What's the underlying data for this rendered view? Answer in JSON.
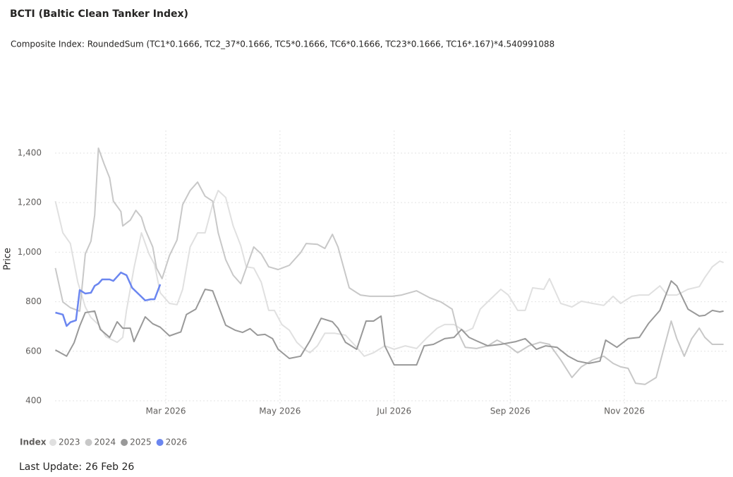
{
  "chart_data": {
    "type": "line",
    "title": "BCTI (Baltic Clean Tanker Index)",
    "subtitle": "Composite Index: RoundedSum (TC1*0.1666, TC2_37*0.1666, TC5*0.1666, TC6*0.1666, TC23*0.1666, TC16*.167)*4.540991088",
    "y_label": "Price",
    "legend_title": "Index",
    "footer_label": "Last Update:",
    "footer_value": "26 Feb 26",
    "xlim": [
      0,
      360
    ],
    "xticks": [
      {
        "value": 59,
        "label": "Mar 2026"
      },
      {
        "value": 120,
        "label": "May 2026"
      },
      {
        "value": 181,
        "label": "Jul 2026"
      },
      {
        "value": 243,
        "label": "Sep 2026"
      },
      {
        "value": 304,
        "label": "Nov 2026"
      }
    ],
    "ylim": [
      380,
      1490
    ],
    "yticks": [
      400,
      600,
      800,
      {
        "value": 1000,
        "label": "1,000"
      },
      {
        "value": 1200,
        "label": "1,200"
      },
      {
        "value": 1400,
        "label": "1,400"
      }
    ],
    "grid": true,
    "series": [
      {
        "name": "2023",
        "color": "#e0e0e0",
        "x": [
          0,
          4,
          8,
          12,
          16,
          19,
          23,
          27,
          33,
          36,
          38,
          42,
          46,
          50,
          53,
          56,
          61,
          65,
          68,
          72,
          76,
          80,
          84,
          87,
          91,
          95,
          99,
          102,
          106,
          110,
          114,
          117,
          121,
          125,
          129,
          133,
          136,
          140,
          144,
          149,
          155,
          161,
          165,
          170,
          176,
          181,
          187,
          193,
          198,
          204,
          208,
          213,
          219,
          223,
          227,
          232,
          238,
          242,
          247,
          251,
          255,
          261,
          264,
          270,
          276,
          281,
          287,
          293,
          298,
          302,
          308,
          312,
          317,
          323,
          327,
          332,
          338,
          344,
          347,
          351,
          355,
          357
        ],
        "values": [
          1206,
          1078,
          1035,
          879,
          779,
          736,
          708,
          659,
          636,
          656,
          765,
          936,
          1078,
          993,
          950,
          836,
          793,
          788,
          850,
          1021,
          1078,
          1078,
          1192,
          1249,
          1221,
          1106,
          1027,
          941,
          936,
          879,
          765,
          765,
          708,
          685,
          636,
          608,
          594,
          622,
          673,
          673,
          665,
          616,
          580,
          594,
          622,
          608,
          622,
          611,
          651,
          693,
          708,
          708,
          679,
          693,
          770,
          807,
          850,
          827,
          765,
          765,
          856,
          850,
          893,
          793,
          779,
          802,
          793,
          785,
          822,
          793,
          822,
          827,
          827,
          864,
          827,
          827,
          850,
          861,
          898,
          941,
          964,
          958
        ]
      },
      {
        "name": "2024",
        "color": "#c8c8c8",
        "x": [
          0,
          4,
          8,
          13,
          16,
          19,
          21,
          23,
          26,
          29,
          31,
          35,
          36,
          40,
          43,
          46,
          48,
          52,
          54,
          57,
          61,
          65,
          68,
          72,
          76,
          80,
          84,
          87,
          91,
          95,
          99,
          102,
          106,
          110,
          114,
          119,
          125,
          131,
          134,
          140,
          144,
          148,
          151,
          157,
          163,
          168,
          174,
          180,
          185,
          193,
          200,
          206,
          212,
          215,
          219,
          225,
          231,
          236,
          242,
          247,
          253,
          259,
          264,
          270,
          276,
          281,
          287,
          293,
          298,
          302,
          306,
          310,
          315,
          321,
          325,
          329,
          332,
          336,
          340,
          344,
          347,
          351,
          357
        ],
        "values": [
          936,
          799,
          776,
          762,
          993,
          1044,
          1149,
          1420,
          1357,
          1300,
          1206,
          1164,
          1106,
          1129,
          1169,
          1141,
          1092,
          1021,
          936,
          893,
          987,
          1049,
          1192,
          1249,
          1283,
          1226,
          1206,
          1078,
          970,
          907,
          873,
          936,
          1021,
          993,
          941,
          930,
          947,
          998,
          1035,
          1032,
          1015,
          1072,
          1021,
          856,
          827,
          822,
          822,
          822,
          827,
          844,
          816,
          799,
          770,
          678,
          616,
          611,
          622,
          645,
          622,
          594,
          622,
          636,
          628,
          565,
          494,
          537,
          565,
          580,
          551,
          537,
          531,
          471,
          466,
          494,
          608,
          722,
          651,
          580,
          651,
          693,
          656,
          628,
          628
        ]
      },
      {
        "name": "2025",
        "color": "#999999",
        "x": [
          0,
          6,
          10,
          13,
          16,
          21,
          24,
          29,
          33,
          36,
          40,
          42,
          48,
          52,
          56,
          61,
          67,
          70,
          75,
          80,
          84,
          87,
          91,
          96,
          100,
          104,
          108,
          112,
          116,
          119,
          125,
          131,
          136,
          142,
          148,
          151,
          155,
          161,
          166,
          170,
          174,
          176,
          181,
          187,
          193,
          197,
          202,
          208,
          213,
          217,
          221,
          225,
          231,
          238,
          246,
          251,
          257,
          262,
          268,
          274,
          279,
          285,
          291,
          294,
          300,
          306,
          312,
          317,
          323,
          329,
          332,
          338,
          344,
          347,
          351,
          355,
          357
        ],
        "values": [
          605,
          580,
          634,
          702,
          756,
          762,
          688,
          656,
          719,
          693,
          693,
          639,
          739,
          711,
          697,
          662,
          678,
          748,
          770,
          850,
          844,
          785,
          705,
          685,
          676,
          691,
          665,
          668,
          651,
          608,
          571,
          580,
          642,
          733,
          719,
          693,
          636,
          608,
          722,
          722,
          742,
          622,
          545,
          545,
          545,
          622,
          628,
          651,
          656,
          688,
          656,
          642,
          622,
          628,
          639,
          651,
          608,
          622,
          616,
          580,
          560,
          551,
          560,
          645,
          616,
          651,
          656,
          713,
          765,
          884,
          864,
          770,
          742,
          745,
          765,
          759,
          762
        ]
      },
      {
        "name": "2026",
        "color": "#6b86f0",
        "x": [
          0,
          4,
          6,
          8,
          11,
          13,
          16,
          19,
          21,
          23,
          25,
          29,
          31,
          35,
          38,
          41,
          45,
          48,
          51,
          53,
          56
        ],
        "values": [
          756,
          748,
          702,
          717,
          725,
          847,
          833,
          836,
          864,
          873,
          890,
          890,
          884,
          918,
          907,
          856,
          827,
          805,
          810,
          810,
          870
        ]
      }
    ]
  }
}
